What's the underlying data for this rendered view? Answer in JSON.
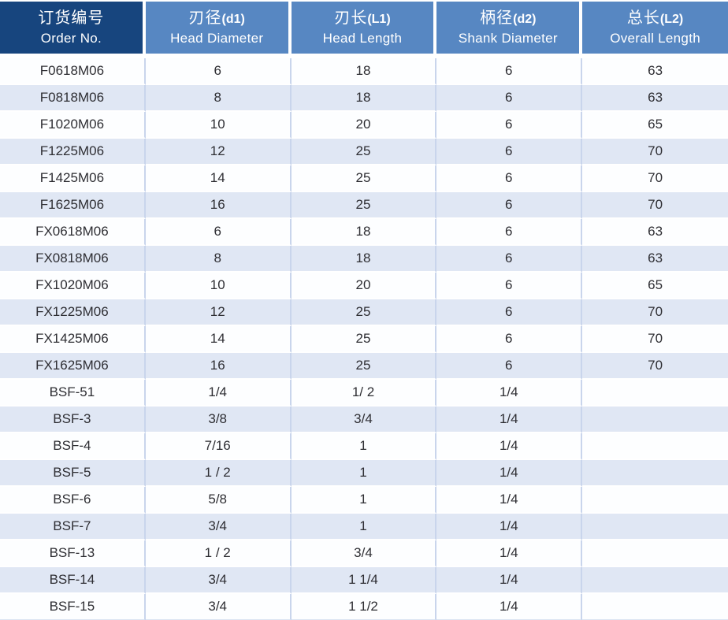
{
  "colors": {
    "header_primary_bg": "#17457E",
    "header_secondary_bg": "#5787C2",
    "header_text": "#FFFFFF",
    "row_bg": "#FDFEFF",
    "row_alt_bg": "#E0E7F4",
    "grid_line": "#C9D5EC",
    "cell_text": "#2E2E33"
  },
  "table": {
    "columns": [
      {
        "title_zh": "订货编号",
        "title_suffix": "",
        "title_en": "Order No."
      },
      {
        "title_zh": "刃径",
        "title_suffix": "(d1)",
        "title_en": "Head Diameter"
      },
      {
        "title_zh": "刃长",
        "title_suffix": "(L1)",
        "title_en": "Head Length"
      },
      {
        "title_zh": "柄径",
        "title_suffix": "(d2)",
        "title_en": "Shank Diameter"
      },
      {
        "title_zh": "总长",
        "title_suffix": "(L2)",
        "title_en": "Overall Length"
      }
    ],
    "rows": [
      {
        "order_no": "F0618M06",
        "head_diameter": "6",
        "head_length": "18",
        "shank_diameter": "6",
        "overall_length": "63"
      },
      {
        "order_no": "F0818M06",
        "head_diameter": "8",
        "head_length": "18",
        "shank_diameter": "6",
        "overall_length": "63"
      },
      {
        "order_no": "F1020M06",
        "head_diameter": "10",
        "head_length": "20",
        "shank_diameter": "6",
        "overall_length": "65"
      },
      {
        "order_no": "F1225M06",
        "head_diameter": "12",
        "head_length": "25",
        "shank_diameter": "6",
        "overall_length": "70"
      },
      {
        "order_no": "F1425M06",
        "head_diameter": "14",
        "head_length": "25",
        "shank_diameter": "6",
        "overall_length": "70"
      },
      {
        "order_no": "F1625M06",
        "head_diameter": "16",
        "head_length": "25",
        "shank_diameter": "6",
        "overall_length": "70"
      },
      {
        "order_no": "FX0618M06",
        "head_diameter": "6",
        "head_length": "18",
        "shank_diameter": "6",
        "overall_length": "63"
      },
      {
        "order_no": "FX0818M06",
        "head_diameter": "8",
        "head_length": "18",
        "shank_diameter": "6",
        "overall_length": "63"
      },
      {
        "order_no": "FX1020M06",
        "head_diameter": "10",
        "head_length": "20",
        "shank_diameter": "6",
        "overall_length": "65"
      },
      {
        "order_no": "FX1225M06",
        "head_diameter": "12",
        "head_length": "25",
        "shank_diameter": "6",
        "overall_length": "70"
      },
      {
        "order_no": "FX1425M06",
        "head_diameter": "14",
        "head_length": "25",
        "shank_diameter": "6",
        "overall_length": "70"
      },
      {
        "order_no": "FX1625M06",
        "head_diameter": "16",
        "head_length": "25",
        "shank_diameter": "6",
        "overall_length": "70"
      },
      {
        "order_no": "BSF-51",
        "head_diameter": "1/4",
        "head_length": "1/ 2",
        "shank_diameter": "1/4",
        "overall_length": ""
      },
      {
        "order_no": "BSF-3",
        "head_diameter": "3/8",
        "head_length": "3/4",
        "shank_diameter": "1/4",
        "overall_length": ""
      },
      {
        "order_no": "BSF-4",
        "head_diameter": "7/16",
        "head_length": "1",
        "shank_diameter": "1/4",
        "overall_length": ""
      },
      {
        "order_no": "BSF-5",
        "head_diameter": "1 / 2",
        "head_length": "1",
        "shank_diameter": "1/4",
        "overall_length": ""
      },
      {
        "order_no": "BSF-6",
        "head_diameter": "5/8",
        "head_length": "1",
        "shank_diameter": "1/4",
        "overall_length": ""
      },
      {
        "order_no": "BSF-7",
        "head_diameter": "3/4",
        "head_length": "1",
        "shank_diameter": "1/4",
        "overall_length": ""
      },
      {
        "order_no": "BSF-13",
        "head_diameter": "1 / 2",
        "head_length": "3/4",
        "shank_diameter": "1/4",
        "overall_length": ""
      },
      {
        "order_no": "BSF-14",
        "head_diameter": "3/4",
        "head_length": "1 1/4",
        "shank_diameter": "1/4",
        "overall_length": ""
      },
      {
        "order_no": "BSF-15",
        "head_diameter": "3/4",
        "head_length": "1 1/2",
        "shank_diameter": "1/4",
        "overall_length": ""
      }
    ]
  }
}
